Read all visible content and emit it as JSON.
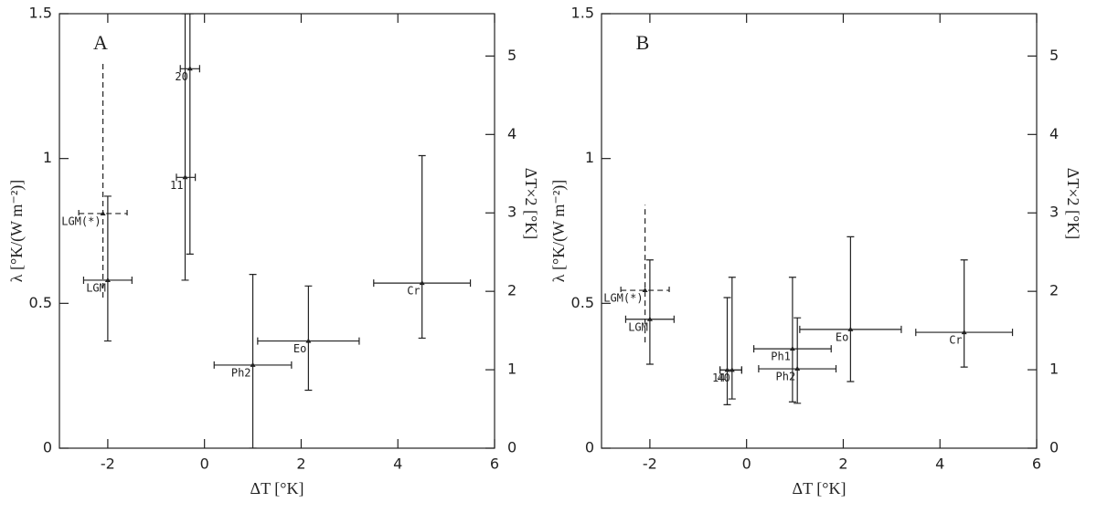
{
  "chart_data": [
    {
      "type": "scatter",
      "panel_label": "A",
      "xlabel": "ΔT [°K]",
      "ylabel": "λ [°K/(W m⁻²)]",
      "y2label": "ΔT×2 [°K]",
      "xlim": [
        -3,
        6
      ],
      "xticks": [
        -2,
        0,
        2,
        4,
        6
      ],
      "ylim": [
        0,
        1.5
      ],
      "yticks": [
        0,
        0.5,
        1,
        1.5
      ],
      "y2lim": [
        0,
        5.54
      ],
      "y2ticks": [
        0,
        1,
        2,
        3,
        4,
        5
      ],
      "labels": [
        "LGM",
        "LGM(*)",
        "20",
        "11",
        "Ph2",
        "Eo",
        "Cr"
      ],
      "x": [
        -2,
        -2.1,
        -0.3,
        -0.4,
        1.0,
        2.15,
        4.5
      ],
      "y": [
        0.58,
        0.81,
        1.31,
        0.935,
        0.287,
        0.37,
        0.57
      ],
      "x_low": [
        -2.5,
        -2.6,
        -0.5,
        -0.58,
        0.2,
        1.1,
        3.5
      ],
      "x_high": [
        -1.5,
        -1.6,
        -0.1,
        -0.19,
        1.8,
        3.2,
        5.5
      ],
      "y_low": [
        0.37,
        0.52,
        0.67,
        0.58,
        0,
        0.2,
        0.38
      ],
      "y_high": [
        0.87,
        1.33,
        1.5,
        1.5,
        0.6,
        0.56,
        1.01
      ],
      "dashed": [
        false,
        true,
        false,
        false,
        false,
        false,
        false
      ],
      "color": "#222222"
    },
    {
      "type": "scatter",
      "panel_label": "B",
      "xlabel": "ΔT [°K]",
      "ylabel": "λ [°K/(W m⁻²)]",
      "y2label": "ΔT×2 [°K]",
      "xlim": [
        -3,
        6
      ],
      "xticks": [
        -2,
        0,
        2,
        4,
        6
      ],
      "ylim": [
        0,
        1.5
      ],
      "yticks": [
        0,
        0.5,
        1,
        1.5
      ],
      "y2lim": [
        0,
        5.54
      ],
      "y2ticks": [
        0,
        1,
        2,
        3,
        4,
        5
      ],
      "labels": [
        "LGM",
        "LGM(*)",
        "14",
        "40",
        "Ph1",
        "Ph2",
        "Eo",
        "Cr"
      ],
      "x": [
        -2,
        -2.1,
        -0.4,
        -0.3,
        0.95,
        1.05,
        2.15,
        4.5
      ],
      "y": [
        0.445,
        0.545,
        0.27,
        0.27,
        0.343,
        0.274,
        0.41,
        0.4
      ],
      "x_low": [
        -2.5,
        -2.6,
        -0.55,
        -0.55,
        0.15,
        0.25,
        1.1,
        3.5
      ],
      "x_high": [
        -1.5,
        -1.6,
        -0.1,
        -0.1,
        1.75,
        1.85,
        3.2,
        5.5
      ],
      "y_low": [
        0.29,
        0.365,
        0.15,
        0.17,
        0.16,
        0.155,
        0.23,
        0.28
      ],
      "y_high": [
        0.65,
        0.84,
        0.52,
        0.59,
        0.59,
        0.45,
        0.73,
        0.65
      ],
      "dashed": [
        false,
        true,
        false,
        false,
        false,
        false,
        false,
        false
      ],
      "color": "#222222"
    }
  ]
}
